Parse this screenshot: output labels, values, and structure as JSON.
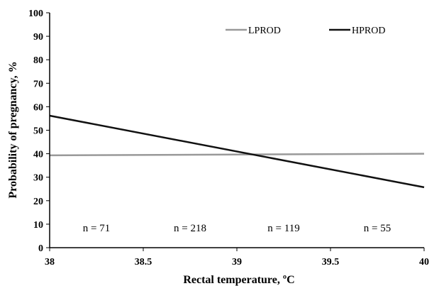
{
  "chart_data": {
    "type": "line",
    "xlabel": "Rectal temperature, ºC",
    "ylabel": "Probability of pregnancy, %",
    "xlim": [
      38,
      40
    ],
    "ylim": [
      0,
      100
    ],
    "x_ticks": [
      38,
      38.5,
      39,
      39.5,
      40
    ],
    "x_tick_labels": [
      "38",
      "38.5",
      "39",
      "39.5",
      "40"
    ],
    "y_ticks": [
      0,
      10,
      20,
      30,
      40,
      50,
      60,
      70,
      80,
      90,
      100
    ],
    "y_tick_labels": [
      "0",
      "10",
      "20",
      "30",
      "40",
      "50",
      "60",
      "70",
      "80",
      "90",
      "100"
    ],
    "grid": false,
    "legend_position": "top-right",
    "series": [
      {
        "name": "LPROD",
        "color": "#999999",
        "x": [
          38,
          40
        ],
        "y": [
          39.3,
          40.0
        ]
      },
      {
        "name": "HPROD",
        "color": "#111111",
        "x": [
          38,
          40
        ],
        "y": [
          56.2,
          25.7
        ]
      }
    ],
    "annotations": [
      {
        "text": "n = 71",
        "x": 38.25,
        "y": 8.5
      },
      {
        "text": "n = 218",
        "x": 38.75,
        "y": 8.5
      },
      {
        "text": "n = 119",
        "x": 39.25,
        "y": 8.5
      },
      {
        "text": "n = 55",
        "x": 39.75,
        "y": 8.5
      }
    ]
  }
}
